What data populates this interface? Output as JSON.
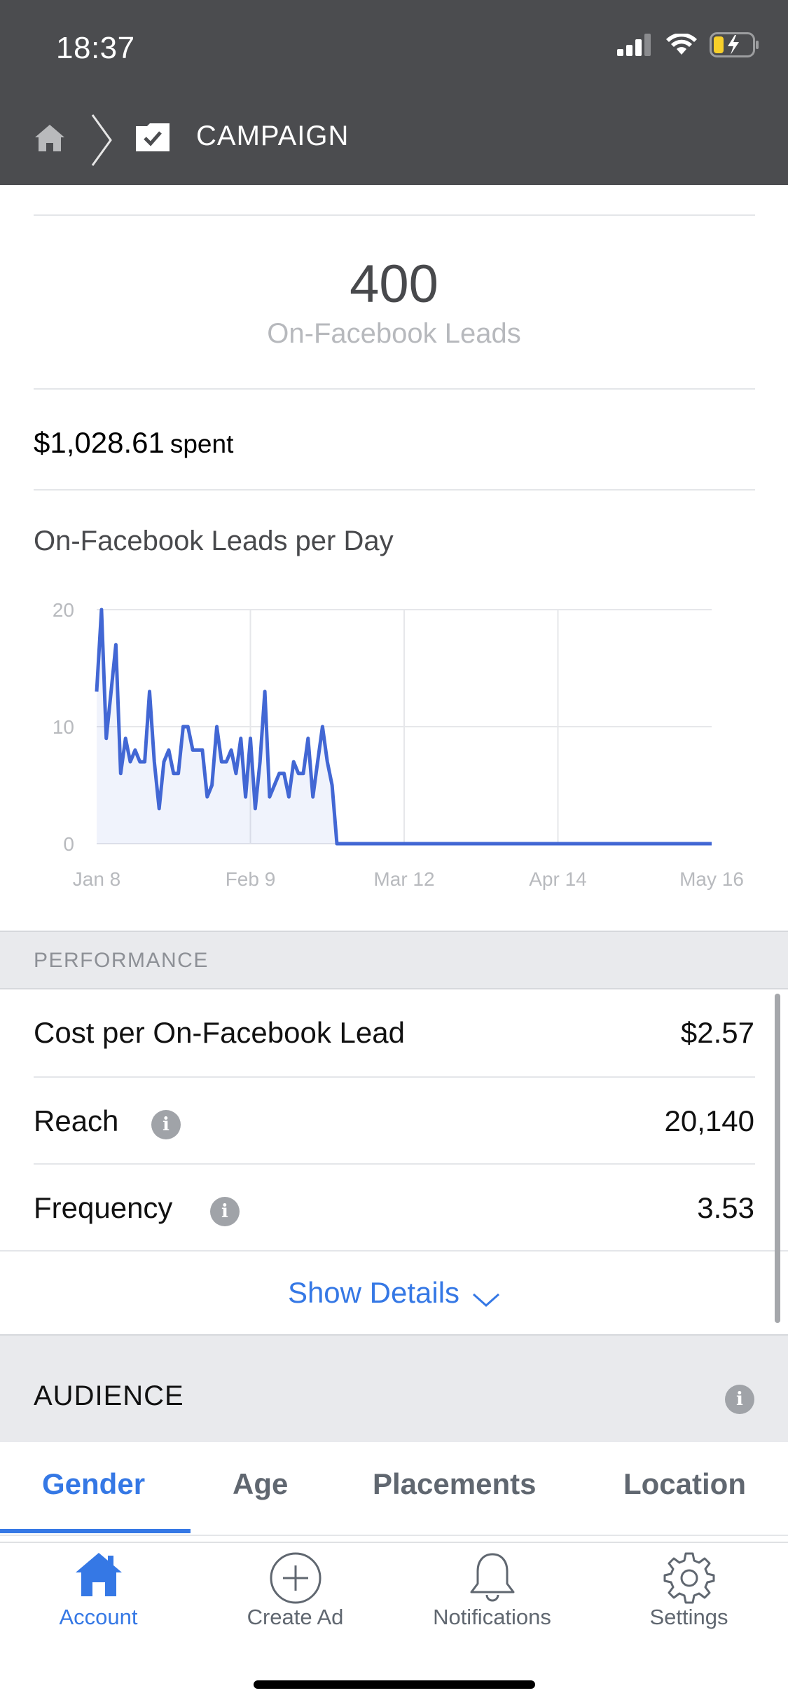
{
  "status_bar": {
    "time": "18:37"
  },
  "header": {
    "title": "CAMPAIGN",
    "home_icon": "home-icon",
    "folder_icon": "folder-check-icon"
  },
  "summary": {
    "leads_count": "400",
    "leads_label": "On-Facebook Leads",
    "spent_amount": "$1,028.61",
    "spent_word": "spent"
  },
  "chart_section": {
    "title": "On-Facebook Leads per Day"
  },
  "chart_data": {
    "type": "area",
    "title": "On-Facebook Leads per Day",
    "xlabel": "",
    "ylabel": "",
    "x_tick_labels": [
      "Jan 8",
      "Feb 9",
      "Mar 12",
      "Apr 14",
      "May 16"
    ],
    "y_ticks": [
      0,
      10,
      20
    ],
    "ylim": [
      0,
      20
    ],
    "x_range_days": [
      0,
      128
    ],
    "grid": true,
    "series": [
      {
        "color": "#4267d4",
        "x": [
          0,
          1,
          2,
          3,
          4,
          5,
          6,
          7,
          8,
          9,
          10,
          11,
          12,
          13,
          14,
          15,
          16,
          17,
          18,
          19,
          20,
          21,
          22,
          23,
          24,
          25,
          26,
          27,
          28,
          29,
          30,
          31,
          32,
          33,
          34,
          35,
          36,
          37,
          38,
          39,
          40,
          41,
          42,
          43,
          44,
          45,
          46,
          47,
          48,
          49,
          50,
          128
        ],
        "values": [
          13,
          20,
          9,
          13,
          17,
          6,
          9,
          7,
          8,
          7,
          7,
          13,
          7,
          3,
          7,
          8,
          6,
          6,
          10,
          10,
          8,
          8,
          8,
          4,
          5,
          10,
          7,
          7,
          8,
          6,
          9,
          4,
          9,
          3,
          7,
          13,
          4,
          5,
          6,
          6,
          4,
          7,
          6,
          6,
          9,
          4,
          7,
          10,
          7,
          5,
          0,
          0
        ]
      }
    ]
  },
  "performance": {
    "header": "PERFORMANCE",
    "rows": [
      {
        "label": "Cost per On-Facebook Lead",
        "value": "$2.57"
      },
      {
        "label": "Reach",
        "value": "20,140"
      },
      {
        "label": "Frequency",
        "value": "3.53"
      }
    ],
    "show_details": "Show Details"
  },
  "audience": {
    "header": "AUDIENCE",
    "tabs": [
      "Gender",
      "Age",
      "Placements",
      "Location"
    ],
    "active_tab": "Gender"
  },
  "bottom_nav": {
    "items": [
      {
        "label": "Account",
        "icon": "home-icon"
      },
      {
        "label": "Create Ad",
        "icon": "plus-circle-icon"
      },
      {
        "label": "Notifications",
        "icon": "bell-icon"
      },
      {
        "label": "Settings",
        "icon": "gear-icon"
      }
    ]
  },
  "colors": {
    "accent": "#3578e5",
    "header_bg": "#4b4c4f",
    "line": "#4267d4"
  }
}
